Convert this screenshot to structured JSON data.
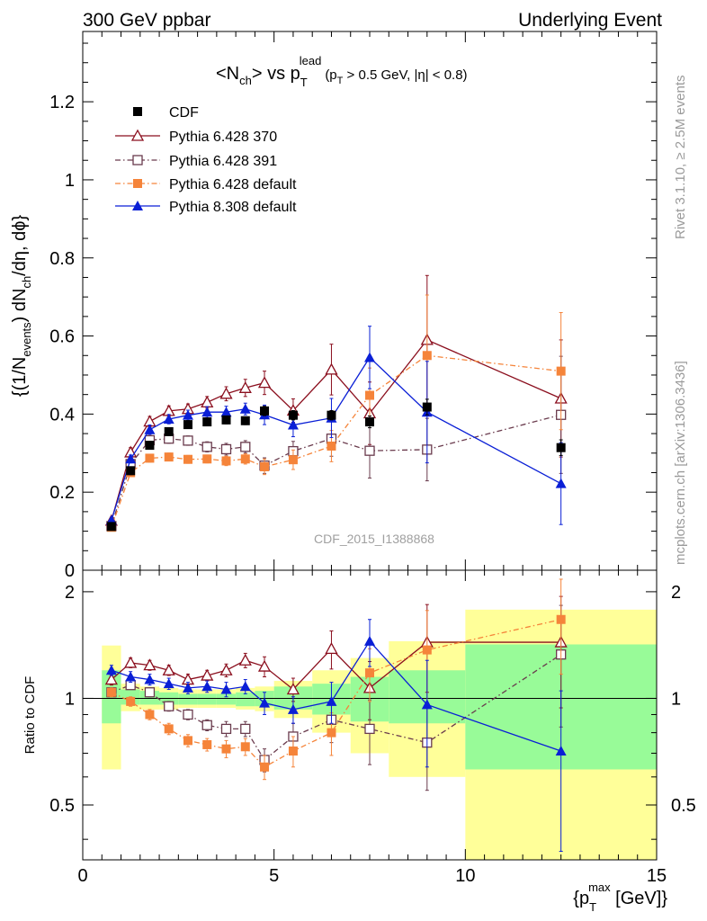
{
  "header": {
    "left": "300 GeV ppbar",
    "right": "Underlying Event"
  },
  "side_labels": {
    "rivet": "Rivet 3.1.10, ≥ 2.5M events",
    "mcplots": "mcplots.cern.ch [arXiv:1306.3436]"
  },
  "title": {
    "part1": "<N",
    "sub1": "ch",
    "part2": "> vs p",
    "sup2": "lead",
    "sub2": "T",
    "cut1": "(p",
    "cut1sub": "T",
    "cut2": " > 0.5 GeV, |η| < 0.8)"
  },
  "ylabel": {
    "a": "{(1/N",
    "a_sub": "events",
    "b": ") dN",
    "b_sub": "ch",
    "c": "/dη, dϕ}"
  },
  "ratio_ylabel": "Ratio to CDF",
  "xlabel": {
    "a": "{p",
    "sup": "max",
    "sub": "T",
    "b": " [GeV]}"
  },
  "watermark": "CDF_2015_I1388868",
  "legend": [
    "CDF",
    "Pythia 6.428 370",
    "Pythia 6.428 391",
    "Pythia 6.428 default",
    "Pythia 8.308 default"
  ],
  "main_yticks": [
    "0.2",
    "0.4",
    "0.6",
    "0.8",
    "1",
    "1.2"
  ],
  "main_y0_label": "0",
  "ratio_yticks": [
    "0.5",
    "1",
    "2"
  ],
  "xticks": [
    "0",
    "5",
    "10",
    "15"
  ],
  "chart_data": {
    "type": "scatter",
    "x": [
      0.75,
      1.25,
      1.75,
      2.25,
      2.75,
      3.25,
      3.75,
      4.25,
      4.75,
      5.5,
      6.5,
      7.5,
      9.0,
      12.5
    ],
    "xlim": [
      0,
      15
    ],
    "ylim": [
      0,
      1.38
    ],
    "ratio_ylim": [
      0.35,
      2.3
    ],
    "ratio_scale": "log",
    "colors": {
      "CDF": "#000000",
      "Pythia 6.428 370": "#8b0f1e",
      "Pythia 6.428 391": "#6a3b4d",
      "Pythia 6.428 default": "#f5843a",
      "Pythia 8.308 default": "#0a1fd6",
      "band_inner": "#98fb98",
      "band_outer": "#ffff99"
    },
    "series": [
      {
        "name": "CDF",
        "marker": "square",
        "values": [
          0.112,
          0.255,
          0.32,
          0.355,
          0.373,
          0.38,
          0.385,
          0.383,
          0.408,
          0.397,
          0.397,
          0.38,
          0.418,
          0.314
        ],
        "errors": [
          0.005,
          0.01,
          0.01,
          0.01,
          0.01,
          0.01,
          0.01,
          0.01,
          0.012,
          0.012,
          0.012,
          0.015,
          0.02,
          0.02
        ]
      },
      {
        "name": "Pythia 6.428 370",
        "marker": "triangle-open",
        "dash": "",
        "values": [
          0.127,
          0.302,
          0.381,
          0.408,
          0.413,
          0.43,
          0.452,
          0.467,
          0.48,
          0.409,
          0.514,
          0.402,
          0.59,
          0.44
        ],
        "errors": [
          0.005,
          0.012,
          0.013,
          0.013,
          0.013,
          0.015,
          0.018,
          0.022,
          0.03,
          0.03,
          0.065,
          0.08,
          0.165,
          0.15
        ],
        "ratio": [
          1.13,
          1.26,
          1.24,
          1.2,
          1.13,
          1.16,
          1.2,
          1.28,
          1.23,
          1.06,
          1.38,
          1.07,
          1.44,
          1.44
        ],
        "ratio_errors": [
          0.04,
          0.04,
          0.04,
          0.04,
          0.04,
          0.04,
          0.05,
          0.06,
          0.08,
          0.08,
          0.17,
          0.2,
          0.4,
          0.5
        ]
      },
      {
        "name": "Pythia 6.428 391",
        "marker": "square-open",
        "dash": "6,3,1.5,3",
        "values": [
          0.113,
          0.272,
          0.333,
          0.337,
          0.332,
          0.316,
          0.31,
          0.316,
          0.268,
          0.305,
          0.337,
          0.306,
          0.309,
          0.398
        ],
        "errors": [
          0.005,
          0.01,
          0.012,
          0.012,
          0.012,
          0.013,
          0.015,
          0.016,
          0.02,
          0.025,
          0.045,
          0.07,
          0.08,
          0.15
        ],
        "ratio": [
          1.04,
          1.09,
          1.04,
          0.95,
          0.9,
          0.84,
          0.82,
          0.82,
          0.67,
          0.78,
          0.87,
          0.82,
          0.75,
          1.33
        ],
        "ratio_errors": [
          0.03,
          0.03,
          0.03,
          0.03,
          0.03,
          0.03,
          0.04,
          0.04,
          0.05,
          0.07,
          0.12,
          0.17,
          0.2,
          0.5
        ]
      },
      {
        "name": "Pythia 6.428 default",
        "marker": "square",
        "dash": "6,3,1.5,3",
        "values": [
          0.11,
          0.25,
          0.287,
          0.29,
          0.284,
          0.285,
          0.28,
          0.285,
          0.265,
          0.283,
          0.318,
          0.448,
          0.55,
          0.51
        ],
        "errors": [
          0.005,
          0.01,
          0.01,
          0.01,
          0.01,
          0.01,
          0.012,
          0.013,
          0.02,
          0.025,
          0.04,
          0.07,
          0.155,
          0.15
        ],
        "ratio": [
          1.04,
          0.98,
          0.9,
          0.82,
          0.76,
          0.74,
          0.72,
          0.73,
          0.64,
          0.71,
          0.8,
          1.18,
          1.37,
          1.67
        ],
        "ratio_errors": [
          0.03,
          0.03,
          0.03,
          0.03,
          0.03,
          0.03,
          0.04,
          0.04,
          0.05,
          0.07,
          0.11,
          0.2,
          0.4,
          0.5
        ]
      },
      {
        "name": "Pythia 8.308 default",
        "marker": "triangle",
        "dash": "",
        "values": [
          0.128,
          0.285,
          0.36,
          0.387,
          0.397,
          0.405,
          0.405,
          0.413,
          0.398,
          0.372,
          0.39,
          0.545,
          0.405,
          0.222
        ],
        "errors": [
          0.005,
          0.01,
          0.012,
          0.012,
          0.013,
          0.014,
          0.015,
          0.015,
          0.025,
          0.03,
          0.05,
          0.08,
          0.13,
          0.105
        ],
        "ratio": [
          1.2,
          1.15,
          1.13,
          1.1,
          1.07,
          1.08,
          1.06,
          1.08,
          0.97,
          0.93,
          0.98,
          1.45,
          0.96,
          0.71
        ],
        "ratio_errors": [
          0.04,
          0.04,
          0.04,
          0.04,
          0.04,
          0.04,
          0.05,
          0.05,
          0.07,
          0.08,
          0.13,
          0.22,
          0.32,
          0.34
        ]
      }
    ],
    "bands": {
      "edges": [
        0.5,
        1.0,
        1.5,
        2.0,
        2.5,
        3.0,
        3.5,
        4.0,
        4.5,
        5.0,
        6.0,
        7.0,
        8.0,
        10.0,
        15.0
      ],
      "inner": [
        [
          0.85,
          1.2
        ],
        [
          0.96,
          1.06
        ],
        [
          0.96,
          1.05
        ],
        [
          0.96,
          1.04
        ],
        [
          0.96,
          1.03
        ],
        [
          0.96,
          1.03
        ],
        [
          0.96,
          1.03
        ],
        [
          0.95,
          1.04
        ],
        [
          0.95,
          1.05
        ],
        [
          0.93,
          1.08
        ],
        [
          0.9,
          1.1
        ],
        [
          0.86,
          1.15
        ],
        [
          0.85,
          1.2
        ],
        [
          0.63,
          1.42
        ]
      ],
      "outer": [
        [
          0.63,
          1.41
        ],
        [
          0.92,
          1.1
        ],
        [
          0.93,
          1.08
        ],
        [
          0.93,
          1.07
        ],
        [
          0.94,
          1.06
        ],
        [
          0.94,
          1.06
        ],
        [
          0.94,
          1.06
        ],
        [
          0.93,
          1.07
        ],
        [
          0.92,
          1.08
        ],
        [
          0.88,
          1.12
        ],
        [
          0.8,
          1.2
        ],
        [
          0.7,
          1.3
        ],
        [
          0.6,
          1.45
        ],
        [
          0.32,
          1.78
        ]
      ]
    }
  }
}
